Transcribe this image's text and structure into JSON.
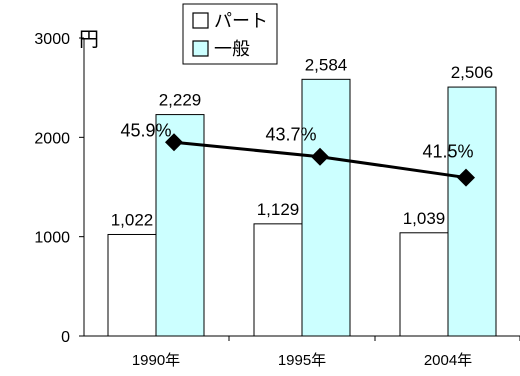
{
  "chart_data": {
    "type": "bar",
    "unit_label": "円",
    "categories": [
      "1990年",
      "1995年",
      "2004年"
    ],
    "series": [
      {
        "name": "パート",
        "values": [
          1022,
          1129,
          1039
        ],
        "value_labels": [
          "1,022",
          "1,129",
          "1,039"
        ],
        "color": "#ffffff"
      },
      {
        "name": "一般",
        "values": [
          2229,
          2584,
          2506
        ],
        "value_labels": [
          "2,229",
          "2,584",
          "2,506"
        ],
        "color": "#ccffff"
      }
    ],
    "ratio_line": {
      "values": [
        1950,
        1805,
        1595
      ],
      "labels": [
        "45.9%",
        "43.7%",
        "41.5%"
      ],
      "color": "#000000"
    },
    "ylim": [
      0,
      3000
    ],
    "yticks": [
      0,
      1000,
      2000,
      3000
    ],
    "ytick_labels": [
      "0",
      "1000",
      "2000",
      "3000"
    ],
    "legend_position": "top-center",
    "grid": false
  }
}
